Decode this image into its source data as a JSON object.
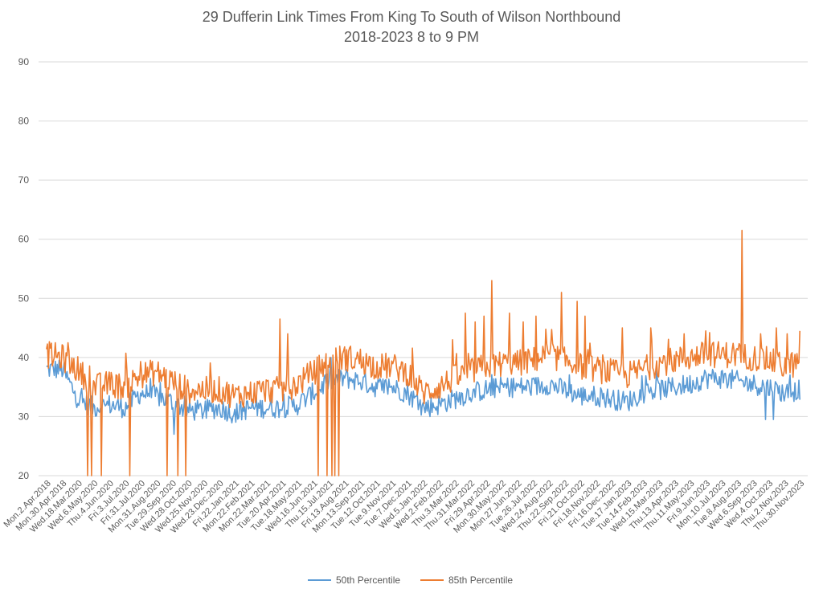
{
  "chart_data": {
    "type": "line",
    "title": "29 Dufferin Link Times From King To South of Wilson Northbound",
    "subtitle": "2018-2023 8 to 9 PM",
    "xlabel": "",
    "ylabel": "",
    "ylim": [
      20,
      90
    ],
    "yticks": [
      20,
      30,
      40,
      50,
      60,
      70,
      80,
      90
    ],
    "grid": true,
    "legend_position": "bottom",
    "x_tick_labels": [
      "Mon.2.Apr.2018",
      "Mon.30.Apr.2018",
      "Wed.18.Mar.2020",
      "Wed.6.May.2020",
      "Thu.4.Jun.2020",
      "Fri.3.Jul.2020",
      "Fri.31.Jul.2020",
      "Mon.31.Aug.2020",
      "Tue.29.Sep.2020",
      "Wed.28.Oct.2020",
      "Wed.25.Nov.2020",
      "Wed.23.Dec.2020",
      "Fri.22.Jan.2021",
      "Mon.22.Feb.2021",
      "Mon.22.Mar.2021",
      "Tue.20.Apr.2021",
      "Tue.18.May.2021",
      "Wed.16.Jun.2021",
      "Thu.15.Jul.2021",
      "Fri.13.Aug.2021",
      "Mon.13.Sep.2021",
      "Tue.12.Oct.2021",
      "Tue.9.Nov.2021",
      "Tue.7.Dec.2021",
      "Wed.5.Jan.2022",
      "Wed.2.Feb.2022",
      "Thu.3.Mar.2022",
      "Thu.31.Mar.2022",
      "Fri.29.Apr.2022",
      "Mon.30.May.2022",
      "Mon.27.Jun.2022",
      "Tue.26.Jul.2022",
      "Wed.24.Aug.2022",
      "Thu.22.Sep.2022",
      "Fri.21.Oct.2022",
      "Fri.18.Nov.2022",
      "Fri.16.Dec.2022",
      "Tue.17.Jan.2023",
      "Tue.14.Feb.2023",
      "Wed.15.Mar.2023",
      "Thu.13.Apr.2023",
      "Thu.11.May.2023",
      "Fri.9.Jun.2023",
      "Mon.10.Jul.2023",
      "Tue.8.Aug.2023",
      "Wed.6.Sep.2023",
      "Wed.4.Oct.2023",
      "Thu.2.Nov.2023",
      "Thu.30.Nov.2023"
    ],
    "series": [
      {
        "name": "50th Percentile",
        "color": "#5b9bd5",
        "anchors": [
          [
            0,
            38.0
          ],
          [
            1,
            38.0
          ],
          [
            2,
            33.0
          ],
          [
            3,
            31.5
          ],
          [
            4,
            32.0
          ],
          [
            5,
            31.5
          ],
          [
            6,
            34.0
          ],
          [
            7,
            33.5
          ],
          [
            8,
            32.5
          ],
          [
            9,
            31.0
          ],
          [
            10,
            31.0
          ],
          [
            11,
            31.5
          ],
          [
            12,
            30.5
          ],
          [
            13,
            31.5
          ],
          [
            14,
            31.5
          ],
          [
            15,
            31.5
          ],
          [
            16,
            32.0
          ],
          [
            17,
            34.0
          ],
          [
            18,
            36.0
          ],
          [
            19,
            36.5
          ],
          [
            20,
            36.0
          ],
          [
            21,
            35.0
          ],
          [
            22,
            35.0
          ],
          [
            23,
            34.0
          ],
          [
            24,
            31.5
          ],
          [
            25,
            32.0
          ],
          [
            26,
            33.0
          ],
          [
            27,
            34.0
          ],
          [
            28,
            34.5
          ],
          [
            29,
            35.0
          ],
          [
            30,
            35.0
          ],
          [
            31,
            35.0
          ],
          [
            32,
            35.5
          ],
          [
            33,
            34.5
          ],
          [
            34,
            33.5
          ],
          [
            35,
            33.5
          ],
          [
            36,
            33.0
          ],
          [
            37,
            32.5
          ],
          [
            38,
            34.0
          ],
          [
            39,
            34.5
          ],
          [
            40,
            35.0
          ],
          [
            41,
            35.5
          ],
          [
            42,
            36.5
          ],
          [
            43,
            36.5
          ],
          [
            44,
            36.0
          ],
          [
            45,
            35.5
          ],
          [
            46,
            35.0
          ],
          [
            47,
            34.0
          ],
          [
            48,
            34.5
          ]
        ],
        "spikes": [
          [
            8.1,
            27.0
          ],
          [
            45.8,
            29.5
          ],
          [
            46.3,
            29.5
          ]
        ]
      },
      {
        "name": "85th Percentile",
        "color": "#ed7d31",
        "anchors": [
          [
            0,
            40.5
          ],
          [
            1,
            40.0
          ],
          [
            2,
            38.0
          ],
          [
            3,
            35.0
          ],
          [
            4,
            35.5
          ],
          [
            5,
            35.0
          ],
          [
            6,
            37.0
          ],
          [
            7,
            37.5
          ],
          [
            8,
            36.0
          ],
          [
            9,
            34.5
          ],
          [
            10,
            34.5
          ],
          [
            11,
            34.5
          ],
          [
            12,
            33.5
          ],
          [
            13,
            34.0
          ],
          [
            14,
            34.5
          ],
          [
            15,
            34.5
          ],
          [
            16,
            35.5
          ],
          [
            17,
            37.5
          ],
          [
            18,
            39.5
          ],
          [
            19,
            40.0
          ],
          [
            20,
            39.5
          ],
          [
            21,
            38.5
          ],
          [
            22,
            38.5
          ],
          [
            23,
            37.5
          ],
          [
            24,
            34.0
          ],
          [
            25,
            35.0
          ],
          [
            26,
            36.5
          ],
          [
            27,
            37.5
          ],
          [
            28,
            38.5
          ],
          [
            29,
            39.0
          ],
          [
            30,
            39.0
          ],
          [
            31,
            39.5
          ],
          [
            32,
            40.5
          ],
          [
            33,
            39.5
          ],
          [
            34,
            38.5
          ],
          [
            35,
            38.0
          ],
          [
            36,
            37.5
          ],
          [
            37,
            37.0
          ],
          [
            38,
            38.0
          ],
          [
            39,
            39.0
          ],
          [
            40,
            39.5
          ],
          [
            41,
            40.0
          ],
          [
            42,
            40.5
          ],
          [
            43,
            40.5
          ],
          [
            44,
            40.5
          ],
          [
            45,
            40.0
          ],
          [
            46,
            39.5
          ],
          [
            47,
            38.5
          ],
          [
            48,
            39.0
          ]
        ],
        "spikes": [
          [
            1.4,
            42.5
          ],
          [
            2.6,
            20.0
          ],
          [
            2.9,
            20.0
          ],
          [
            3.5,
            20.0
          ],
          [
            5.3,
            20.0
          ],
          [
            7.7,
            20.0
          ],
          [
            8.4,
            20.0
          ],
          [
            8.9,
            20.0
          ],
          [
            14.9,
            46.5
          ],
          [
            15.4,
            44.0
          ],
          [
            17.3,
            20.0
          ],
          [
            17.9,
            20.0
          ],
          [
            18.2,
            20.0
          ],
          [
            18.4,
            20.0
          ],
          [
            18.6,
            20.0
          ],
          [
            25.9,
            43.0
          ],
          [
            26.7,
            47.5
          ],
          [
            27.3,
            46.0
          ],
          [
            27.9,
            47.0
          ],
          [
            28.4,
            53.0
          ],
          [
            29.5,
            47.5
          ],
          [
            30.4,
            46.0
          ],
          [
            31.2,
            47.0
          ],
          [
            32.8,
            51.0
          ],
          [
            33.8,
            49.5
          ],
          [
            34.3,
            47.0
          ],
          [
            36.7,
            45.0
          ],
          [
            38.5,
            45.0
          ],
          [
            40.6,
            44.0
          ],
          [
            42.0,
            44.5
          ],
          [
            44.3,
            61.5
          ],
          [
            45.5,
            44.0
          ],
          [
            46.5,
            45.0
          ],
          [
            47.2,
            44.0
          ],
          [
            48.0,
            44.5
          ]
        ]
      }
    ],
    "legend": [
      "50th Percentile",
      "85th Percentile"
    ]
  }
}
